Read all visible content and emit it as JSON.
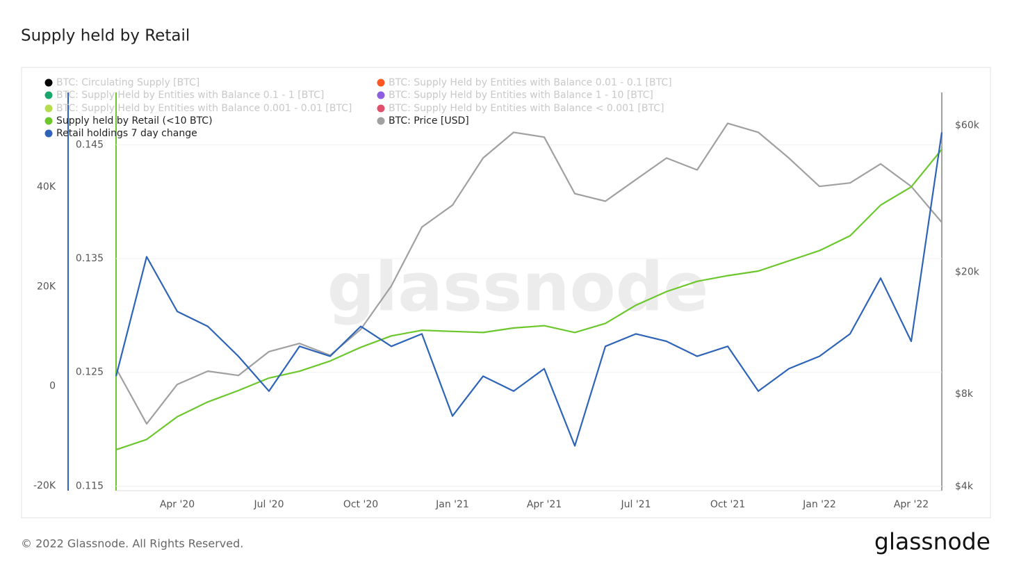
{
  "chart_data": {
    "type": "line",
    "title": "Supply held by Retail",
    "footer": "© 2022 Glassnode. All Rights Reserved.",
    "brand": "glassnode",
    "watermark": "glassnode",
    "x": [
      "2020-02",
      "2020-03",
      "2020-04",
      "2020-05",
      "2020-06",
      "2020-07",
      "2020-08",
      "2020-09",
      "2020-10",
      "2020-11",
      "2020-12",
      "2021-01",
      "2021-02",
      "2021-03",
      "2021-04",
      "2021-05",
      "2021-06",
      "2021-07",
      "2021-08",
      "2021-09",
      "2021-10",
      "2021-11",
      "2021-12",
      "2022-01",
      "2022-02",
      "2022-03",
      "2022-04",
      "2022-05"
    ],
    "xlim": [
      "2020-02",
      "2022-05"
    ],
    "xticks": [
      {
        "value": "2020-04",
        "label": "Apr '20"
      },
      {
        "value": "2020-07",
        "label": "Jul '20"
      },
      {
        "value": "2020-10",
        "label": "Oct '20"
      },
      {
        "value": "2021-01",
        "label": "Jan '21"
      },
      {
        "value": "2021-04",
        "label": "Apr '21"
      },
      {
        "value": "2021-07",
        "label": "Jul '21"
      },
      {
        "value": "2021-10",
        "label": "Oct '21"
      },
      {
        "value": "2022-01",
        "label": "Jan '22"
      },
      {
        "value": "2022-04",
        "label": "Apr '22"
      }
    ],
    "ylim": [
      -21000,
      59000
    ],
    "yticks": [
      {
        "value": -20000,
        "label": "-20K"
      },
      0,
      {
        "value": 20000,
        "label": "20K"
      },
      {
        "value": 40000,
        "label": "40K"
      }
    ],
    "y_supply_lim": [
      0.1146,
      0.1496
    ],
    "y_supply_ticks": [
      0.115,
      0.125,
      0.135,
      0.145
    ],
    "y2lim": [
      3875,
      76900
    ],
    "y2_log": true,
    "y2ticks": [
      {
        "value": 4000,
        "label": "$4k"
      },
      {
        "value": 8000,
        "label": "$8k"
      },
      {
        "value": 20000,
        "label": "$20k"
      },
      {
        "value": 60000,
        "label": "$60k"
      }
    ],
    "grid": true,
    "series": [
      {
        "name": "Supply held by Retail (<10 BTC)",
        "color": "#6cc72d",
        "axis": "supply",
        "values": [
          0.1182,
          0.1191,
          0.1211,
          0.1224,
          0.1234,
          0.1245,
          0.1251,
          0.126,
          0.1272,
          0.1282,
          0.1287,
          0.1286,
          0.1285,
          0.1289,
          0.1291,
          0.1285,
          0.1293,
          0.1309,
          0.1321,
          0.133,
          0.1335,
          0.1339,
          0.1348,
          0.1357,
          0.137,
          0.1397,
          0.1413,
          0.1446
        ]
      },
      {
        "name": "BTC: Price [USD]",
        "color": "#a0a0a0",
        "axis": "y2",
        "values": [
          9700,
          6400,
          8600,
          9500,
          9200,
          11000,
          11700,
          10700,
          13000,
          18000,
          28000,
          33000,
          47000,
          57000,
          55000,
          36000,
          34000,
          40000,
          47000,
          43000,
          61000,
          57000,
          47000,
          38000,
          39000,
          45000,
          38000,
          29000
        ]
      },
      {
        "name": "Retail holdings 7 day change",
        "color": "#2d64b8",
        "axis": "y",
        "values": [
          2000,
          26000,
          15000,
          12000,
          6000,
          -1000,
          8000,
          6000,
          12000,
          8000,
          10500,
          -6000,
          2000,
          -1000,
          3500,
          -12000,
          8000,
          10500,
          9000,
          6000,
          8000,
          -1000,
          3500,
          6000,
          10500,
          21700,
          9000,
          51000
        ]
      }
    ],
    "inactive_series": [
      {
        "name": "BTC: Circulating Supply [BTC]",
        "color": "#000000"
      },
      {
        "name": "BTC: Supply Held by Entities with Balance 0.01 - 0.1 [BTC]",
        "color": "#ff5722"
      },
      {
        "name": "BTC: Supply Held by Entities with Balance 0.1 - 1 [BTC]",
        "color": "#1aa56b"
      },
      {
        "name": "BTC: Supply Held by Entities with Balance 1 - 10 [BTC]",
        "color": "#8e5ee0"
      },
      {
        "name": "BTC: Supply Held by Entities with Balance 0.001 - 0.01 [BTC]",
        "color": "#b5dc4a"
      },
      {
        "name": "BTC: Supply Held by Entities with Balance < 0.001 [BTC]",
        "color": "#e0506a"
      }
    ]
  }
}
